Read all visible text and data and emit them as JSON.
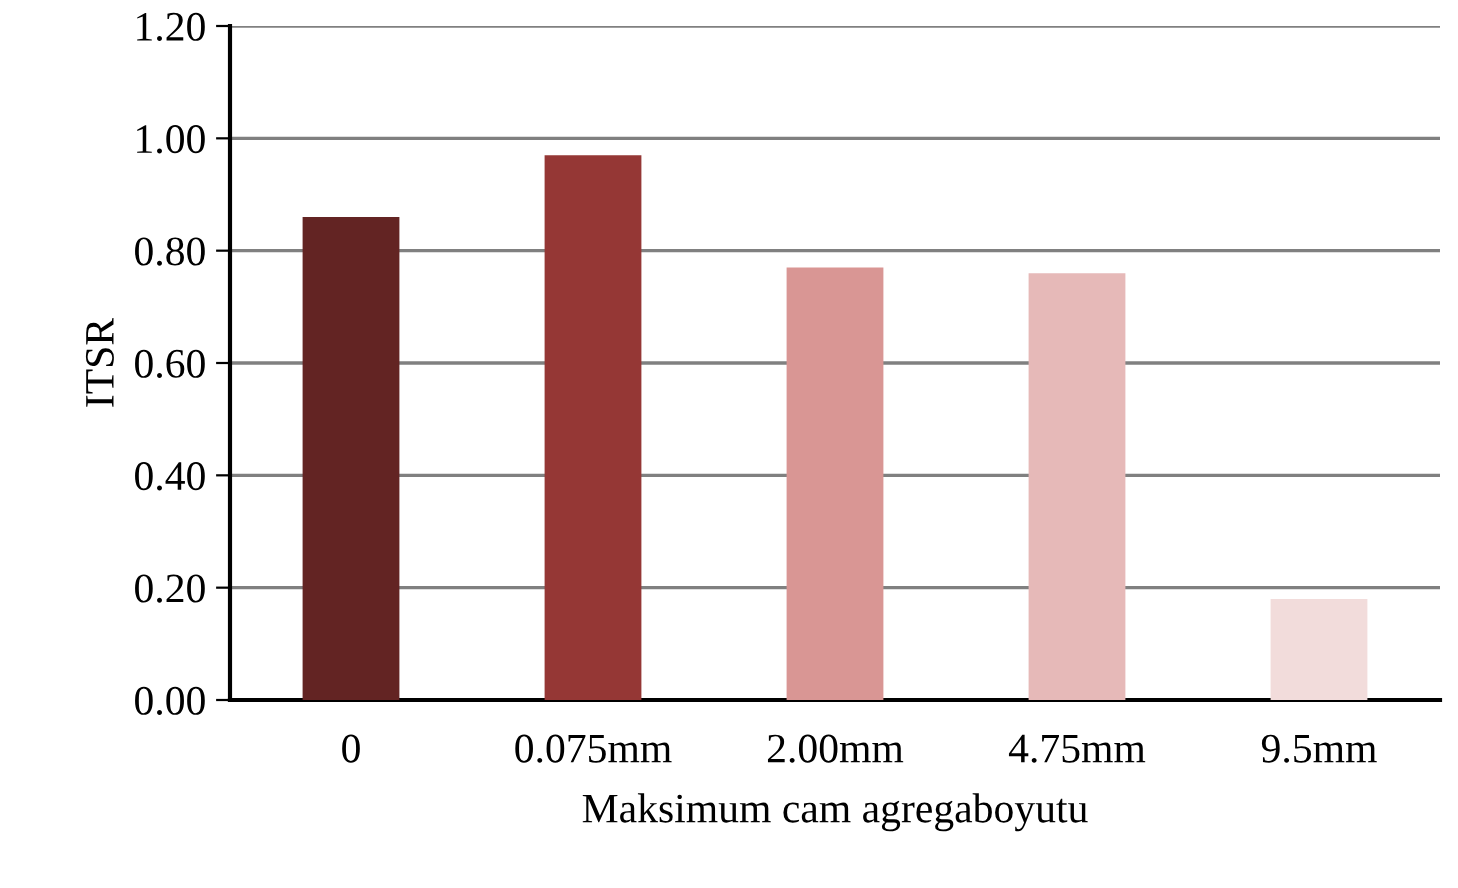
{
  "chart_data": {
    "type": "bar",
    "xlabel": "Maksimum cam agregaboyutu",
    "ylabel": "ITSR",
    "categories": [
      "0",
      "0.075mm",
      "2.00mm",
      "4.75mm",
      "9.5mm"
    ],
    "values": [
      0.86,
      0.97,
      0.77,
      0.76,
      0.18
    ],
    "colors": [
      "#632423",
      "#953735",
      "#d99694",
      "#e6b9b8",
      "#f2dcdb"
    ],
    "ylim": [
      0,
      1.2
    ],
    "yticks": [
      {
        "value": 0,
        "label": "0.00"
      },
      {
        "value": 0.2,
        "label": "0.20"
      },
      {
        "value": 0.4,
        "label": "0.40"
      },
      {
        "value": 0.6,
        "label": "0.60"
      },
      {
        "value": 0.8,
        "label": "0.80"
      },
      {
        "value": 1.0,
        "label": "1.00"
      },
      {
        "value": 1.2,
        "label": "1.20"
      }
    ],
    "grid": "y"
  }
}
